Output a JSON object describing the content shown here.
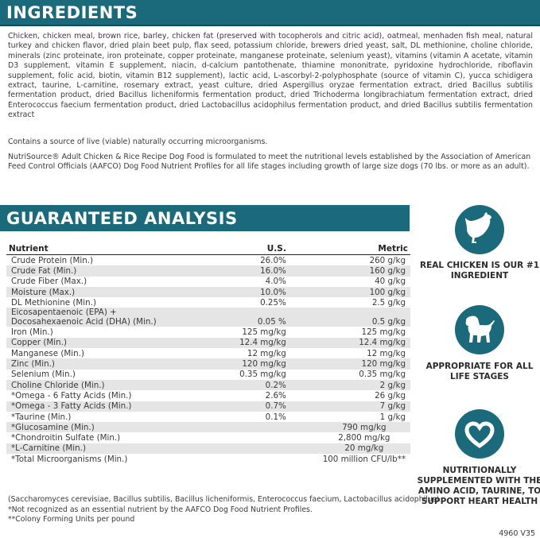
{
  "ingredients": {
    "title": "INGREDIENTS",
    "list": "Chicken, chicken meal, brown rice, barley, chicken fat (preserved with tocopherols and citric acid), oatmeal, menhaden fish meal, natural turkey and chicken flavor, dried plain beet pulp, flax seed, potassium chloride, brewers dried yeast, salt, DL methionine, choline chloride, minerals (zinc proteinate, iron proteinate, copper proteinate, manganese proteinate, selenium yeast), vitamins (vitamin A acetate, vitamin D3 supplement, vitamin E supplement, niacin, d-calcium pantothenate, thiamine mononitrate, pyridoxine hydrochloride, riboflavin supplement, folic acid, biotin, vitamin B12 supplement), lactic acid, L-ascorbyl-2-polyphosphate (source of vitamin C), yucca schidigera extract, taurine, L-carnitine, rosemary extract, yeast culture, dried Aspergillus oryzae fermentation extract, dried Bacillus subtilis fermentation product, dried Bacillus licheniformis fermentation product, dried Trichoderma longibrachiatum fermentation extract, dried Enterococcus faecium fermentation product, dried Lactobacillus acidophilus fermentation product, and dried Bacillus subtilis fermentation extract",
    "note1": "Contains a source of live (viable) naturally occurring microorganisms.",
    "note2": "NutriSource® Adult Chicken & Rice Recipe Dog Food is formulated to meet the nutritional levels established by the Association of American Feed Control Officials (AAFCO) Dog Food Nutrient Profiles for all life stages including growth of large size dogs (70 lbs. or more as an adult)."
  },
  "analysis": {
    "title": "GUARANTEED ANALYSIS",
    "headers": [
      "Nutrient",
      "U.S.",
      "Metric"
    ],
    "rows": [
      [
        "Crude Protein (Min.)",
        "26.0%",
        "260 g/kg"
      ],
      [
        "Crude Fat (Min.)",
        "16.0%",
        "160 g/kg"
      ],
      [
        "Crude Fiber (Max.)",
        "4.0%",
        "40 g/kg"
      ],
      [
        "Moisture (Max.)",
        "10.0%",
        "100 g/kg"
      ],
      [
        "DL Methionine (Min.)",
        "0.25%",
        "2.5 g/kg"
      ],
      [
        "Eicosapentaenoic (EPA) + Docosahexaenoic Acid (DHA) (Min.)",
        "0.05 %",
        "0.5 g/kg"
      ],
      [
        "Iron (Min.)",
        "125 mg/kg",
        "125 mg/kg"
      ],
      [
        "Copper (Min.)",
        "12.4 mg/kg",
        "12.4 mg/kg"
      ],
      [
        "Manganese (Min.)",
        "12 mg/kg",
        "12 mg/kg"
      ],
      [
        "Zinc (Min.)",
        "120 mg/kg",
        "120 mg/kg"
      ],
      [
        "Selenium (Min.)",
        "0.35 mg/kg",
        "0.35 mg/kg"
      ],
      [
        "Choline Chloride (Min.)",
        "0.2%",
        "2 g/kg"
      ],
      [
        "*Omega - 6 Fatty Acids (Min.)",
        "2.6%",
        "26 g/kg"
      ],
      [
        "*Omega - 3 Fatty Acids (Min.)",
        "0.7%",
        "7 g/kg"
      ],
      [
        "*Taurine (Min.)",
        "0.1%",
        "1 g/kg"
      ]
    ],
    "merged_rows": [
      [
        "*Glucosamine (Min.)",
        "790 mg/kg"
      ],
      [
        "*Chondroitin Sulfate (Min.)",
        "2,800 mg/kg"
      ],
      [
        "*L-Carnitine (Min.)",
        "20 mg/kg"
      ],
      [
        "*Total Microorganisms (Min.)",
        "100 million CFU/lb**"
      ]
    ],
    "footnotes": [
      "(Saccharomyces cerevisiae, Bacillus subtilis, Bacillus licheniformis, Enterococcus faecium, Lactobacillus acidophilus)",
      "*Not recognized as an essential nutrient by the AAFCO Dog Food Nutrient Profiles.",
      "**Colony Forming Units per pound"
    ]
  },
  "badges": [
    {
      "icon": "chicken-icon",
      "label": "REAL CHICKEN IS OUR #1 INGREDIENT"
    },
    {
      "icon": "puppy-icon",
      "label": "APPROPRIATE FOR ALL LIFE STAGES"
    },
    {
      "icon": "heart-icon",
      "label": "NUTRITIONALLY SUPPLEMENTED WITH THE AMINO ACID, TAURINE, TO SUPPORT HEART HEALTH"
    }
  ],
  "version": "4960 V35",
  "colors": {
    "brand_teal": "#1b6a7b",
    "stripe": "#e5e5e5"
  }
}
